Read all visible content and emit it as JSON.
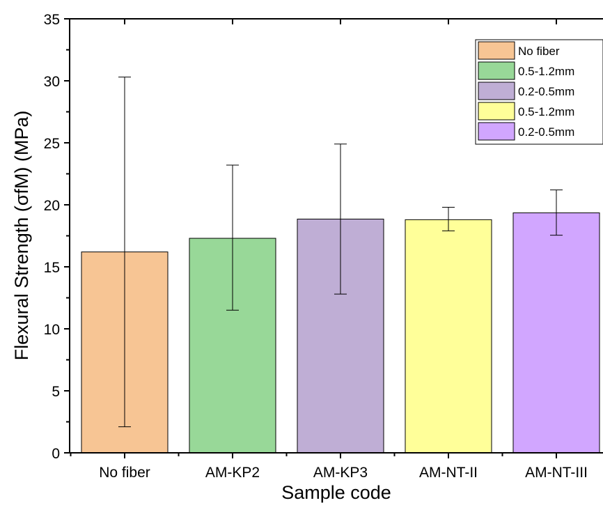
{
  "chart_data": {
    "type": "bar",
    "categories": [
      "No fiber",
      "AM-KP2",
      "AM-KP3",
      "AM-NT-II",
      "AM-NT-III"
    ],
    "values": [
      16.2,
      17.3,
      18.85,
      18.8,
      19.35
    ],
    "error_low": [
      2.1,
      11.5,
      12.8,
      17.9,
      17.55
    ],
    "error_high": [
      30.3,
      23.2,
      24.9,
      19.8,
      21.2
    ],
    "colors": [
      "#f7c594",
      "#98d898",
      "#bfaed5",
      "#ffff99",
      "#d1a6ff"
    ],
    "xlabel": "Sample code",
    "ylabel": "Flexural Strength (σfM) (MPa)",
    "ylim": [
      0,
      35
    ],
    "yticks": [
      "0",
      "5",
      "10",
      "15",
      "20",
      "25",
      "30",
      "35"
    ],
    "grid": false,
    "legend": {
      "placement": "top-right",
      "entries": [
        {
          "label": "No fiber",
          "color": "#f7c594"
        },
        {
          "label": "0.5-1.2mm",
          "color": "#98d898"
        },
        {
          "label": "0.2-0.5mm",
          "color": "#bfaed5"
        },
        {
          "label": "0.5-1.2mm",
          "color": "#ffff99"
        },
        {
          "label": "0.2-0.5mm",
          "color": "#d1a6ff"
        }
      ]
    }
  }
}
